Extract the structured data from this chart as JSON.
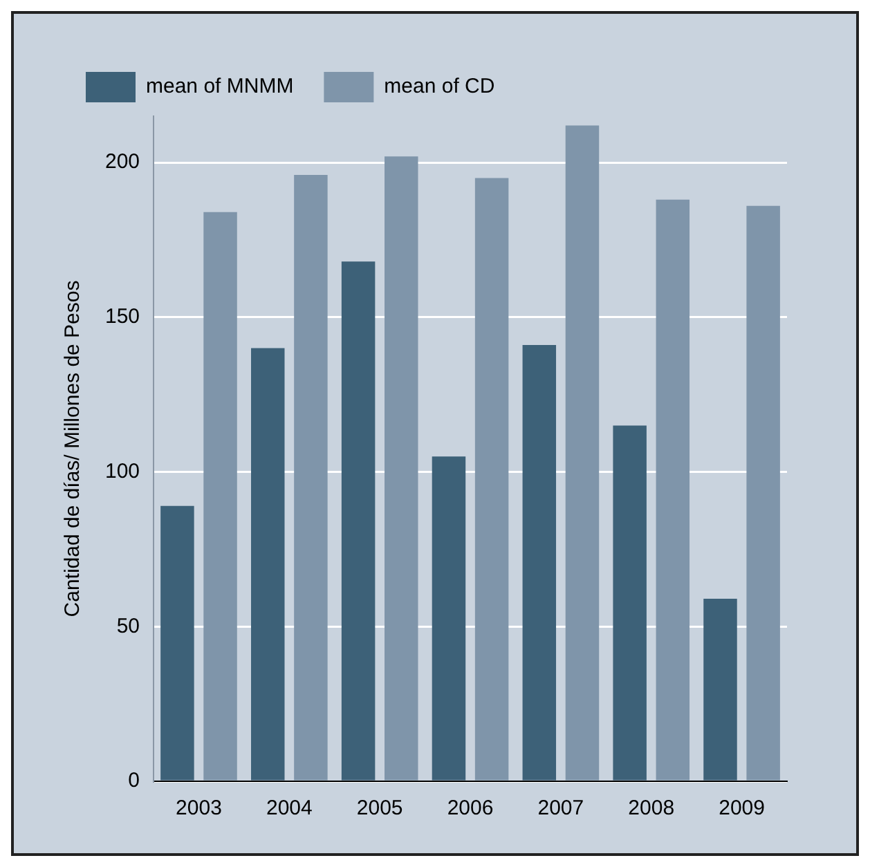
{
  "chart_data": {
    "type": "bar",
    "ylabel": "Cantidad de días/ Millones de Pesos",
    "categories": [
      "2003",
      "2004",
      "2005",
      "2006",
      "2007",
      "2008",
      "2009"
    ],
    "series": [
      {
        "name": "mean of MNMM",
        "color": "#3d6178",
        "values": [
          89,
          140,
          168,
          105,
          141,
          115,
          59
        ]
      },
      {
        "name": "mean of CD",
        "color": "#7f95aa",
        "values": [
          184,
          196,
          202,
          195,
          212,
          188,
          186
        ]
      }
    ],
    "ylim": [
      0,
      215
    ],
    "yticks": [
      0,
      50,
      100,
      150,
      200
    ],
    "grid": "y",
    "legend": "top left"
  }
}
